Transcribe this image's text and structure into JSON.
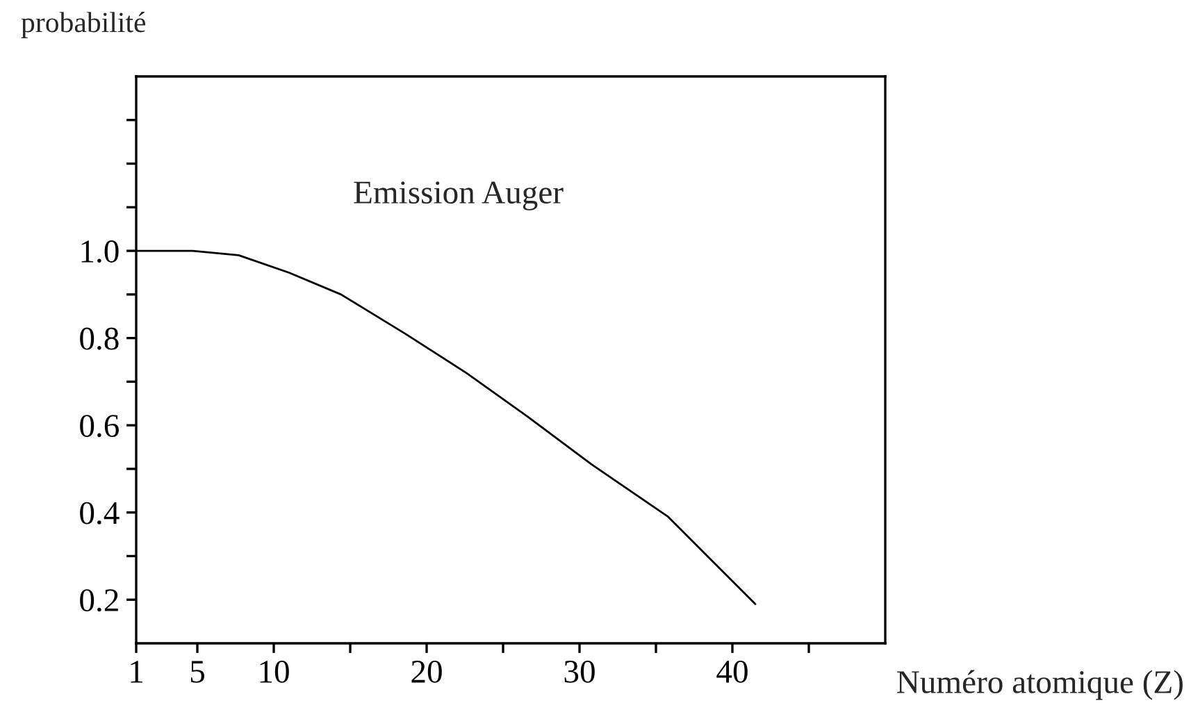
{
  "chart_data": {
    "type": "line",
    "xlabel": "Numéro atomique (Z)",
    "ylabel": "probabilité",
    "annotations": [
      "Emission Auger"
    ],
    "x": [
      1,
      4.7,
      7.7,
      11.0,
      14.4,
      18.6,
      22.6,
      26.6,
      30.8,
      35.8,
      41.5
    ],
    "series": [
      {
        "color": "#000000",
        "values": [
          1.0,
          1.0,
          0.99,
          0.95,
          0.9,
          0.81,
          0.72,
          0.62,
          0.51,
          0.39,
          0.19
        ]
      }
    ],
    "xlim": [
      1,
      50
    ],
    "xticks": [
      {
        "value": 1,
        "label": "1"
      },
      5,
      10,
      {
        "value": 15,
        "label": null
      },
      20,
      {
        "value": 25,
        "label": null
      },
      30,
      {
        "value": 35,
        "label": null
      },
      40,
      {
        "value": 45,
        "label": null
      }
    ],
    "ylim": [
      0.1,
      1.4
    ],
    "yticks": [
      0.2,
      {
        "value": 0.3,
        "label": null
      },
      0.4,
      {
        "value": 0.5,
        "label": null
      },
      0.6,
      {
        "value": 0.7,
        "label": null
      },
      0.8,
      {
        "value": 0.9,
        "label": null
      },
      {
        "value": 1,
        "label": "1.0"
      },
      {
        "value": 1.1,
        "label": null
      },
      {
        "value": 1.2,
        "label": null
      },
      {
        "value": 1.3,
        "label": null
      }
    ],
    "marker": "none",
    "line_style": "solid"
  }
}
